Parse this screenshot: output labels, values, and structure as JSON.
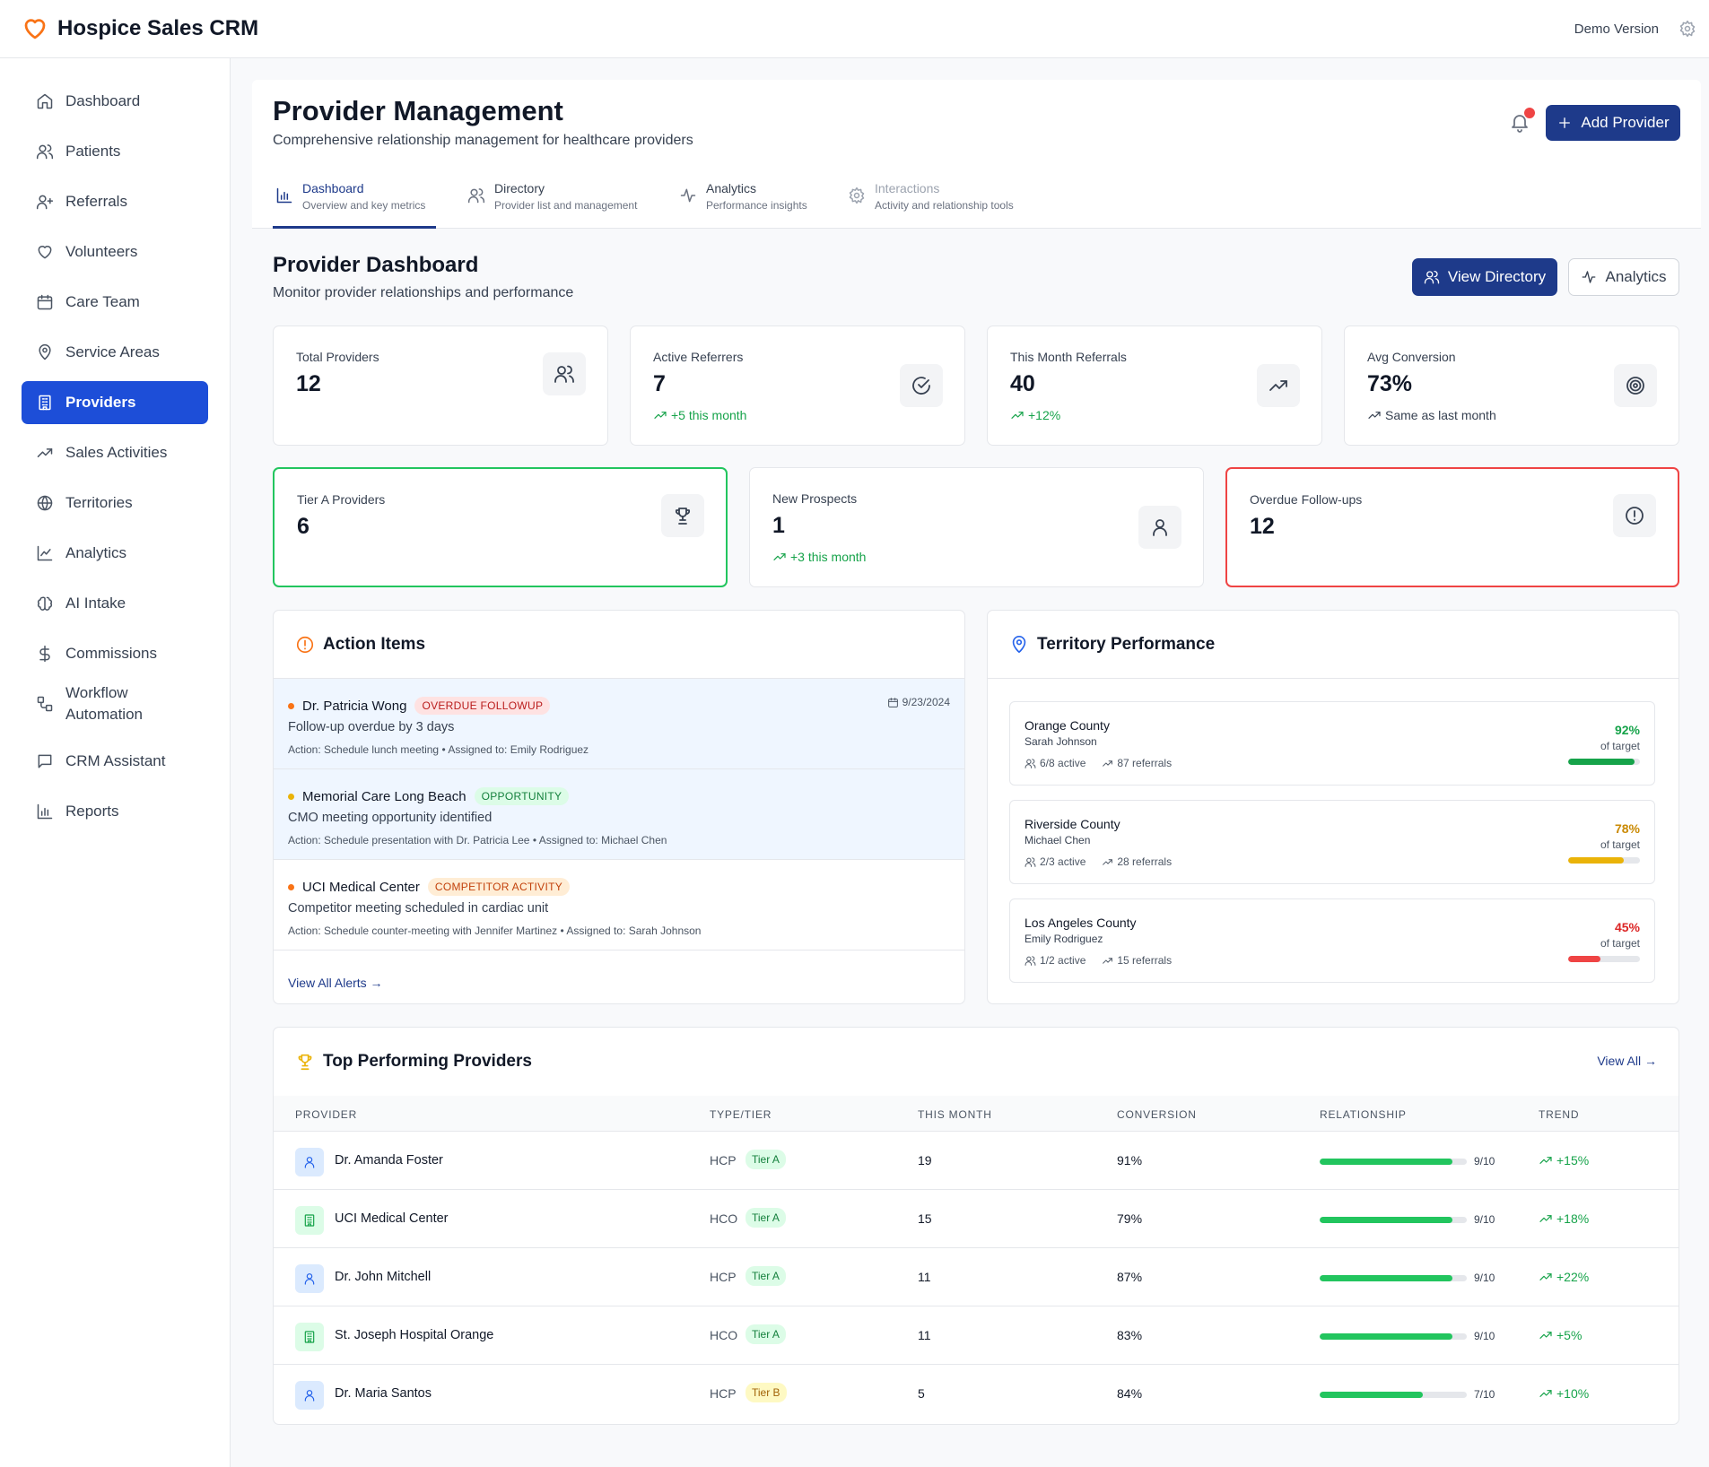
{
  "app": {
    "title": "Hospice Sales CRM",
    "demo_label": "Demo Version"
  },
  "sidebar": {
    "items": [
      {
        "label": "Dashboard",
        "icon": "home-icon"
      },
      {
        "label": "Patients",
        "icon": "users-icon"
      },
      {
        "label": "Referrals",
        "icon": "user-plus-icon"
      },
      {
        "label": "Volunteers",
        "icon": "heart-icon"
      },
      {
        "label": "Care Team",
        "icon": "calendar-icon"
      },
      {
        "label": "Service Areas",
        "icon": "map-pin-icon"
      },
      {
        "label": "Providers",
        "icon": "building-icon",
        "active": true
      },
      {
        "label": "Sales Activities",
        "icon": "trending-up-icon"
      },
      {
        "label": "Territories",
        "icon": "globe-icon"
      },
      {
        "label": "Analytics",
        "icon": "line-chart-icon"
      },
      {
        "label": "AI Intake",
        "icon": "brain-icon"
      },
      {
        "label": "Commissions",
        "icon": "dollar-icon"
      },
      {
        "label": "Workflow Automation",
        "label_line1": "Workflow",
        "label_line2": "Automation",
        "icon": "workflow-icon"
      },
      {
        "label": "CRM Assistant",
        "icon": "message-icon"
      },
      {
        "label": "Reports",
        "icon": "bar-chart-icon"
      }
    ]
  },
  "page": {
    "title": "Provider Management",
    "subtitle": "Comprehensive relationship management for healthcare providers",
    "add_button": "Add Provider"
  },
  "tabs": [
    {
      "label": "Dashboard",
      "sub": "Overview and key metrics",
      "active": true
    },
    {
      "label": "Directory",
      "sub": "Provider list and management"
    },
    {
      "label": "Analytics",
      "sub": "Performance insights"
    },
    {
      "label": "Interactions",
      "sub": "Activity and relationship tools"
    }
  ],
  "dashboard": {
    "title": "Provider Dashboard",
    "subtitle": "Monitor provider relationships and performance",
    "view_directory": "View Directory",
    "analytics": "Analytics"
  },
  "stats": [
    {
      "label": "Total Providers",
      "value": "12",
      "change": ""
    },
    {
      "label": "Active Referrers",
      "value": "7",
      "change": "+5 this month"
    },
    {
      "label": "This Month Referrals",
      "value": "40",
      "change": "+12%"
    },
    {
      "label": "Avg Conversion",
      "value": "73%",
      "change": "Same as last month"
    },
    {
      "label": "Tier A Providers",
      "value": "6",
      "change": ""
    },
    {
      "label": "New Prospects",
      "value": "1",
      "change": "+3 this month"
    },
    {
      "label": "Overdue Follow-ups",
      "value": "12",
      "change": ""
    }
  ],
  "action_items": {
    "title": "Action Items",
    "view_all": "View All Alerts →",
    "items": [
      {
        "name": "Dr. Patricia Wong",
        "badge": "OVERDUE FOLLOWUP",
        "date": "9/23/2024",
        "desc": "Follow-up overdue by 3 days",
        "action": "Action: Schedule lunch meeting • Assigned to: Emily Rodriguez",
        "dot_color": "#f97316"
      },
      {
        "name": "Memorial Care Long Beach",
        "badge": "OPPORTUNITY",
        "date": "",
        "desc": "CMO meeting opportunity identified",
        "action": "Action: Schedule presentation with Dr. Patricia Lee • Assigned to: Michael Chen",
        "dot_color": "#eab308"
      },
      {
        "name": "UCI Medical Center",
        "badge": "COMPETITOR ACTIVITY",
        "date": "",
        "desc": "Competitor meeting scheduled in cardiac unit",
        "action": "Action: Schedule counter-meeting with Jennifer Martinez • Assigned to: Sarah Johnson",
        "dot_color": "#f97316"
      }
    ]
  },
  "territory": {
    "title": "Territory Performance",
    "items": [
      {
        "name": "Orange County",
        "person": "Sarah Johnson",
        "active": "6/8 active",
        "referrals": "87 referrals",
        "pct": "92%",
        "pct_value": 0.92,
        "of_target": "of target",
        "color": "#16a34a"
      },
      {
        "name": "Riverside County",
        "person": "Michael Chen",
        "active": "2/3 active",
        "referrals": "28 referrals",
        "pct": "78%",
        "pct_value": 0.78,
        "of_target": "of target",
        "color": "#eab308"
      },
      {
        "name": "Los Angeles County",
        "person": "Emily Rodriguez",
        "active": "1/2 active",
        "referrals": "15 referrals",
        "pct": "45%",
        "pct_value": 0.45,
        "of_target": "of target",
        "color": "#ef4444"
      }
    ]
  },
  "top_providers": {
    "title": "Top Performing Providers",
    "view_all": "View All →",
    "columns": [
      "PROVIDER",
      "TYPE/TIER",
      "THIS MONTH",
      "CONVERSION",
      "RELATIONSHIP",
      "TREND"
    ],
    "rows": [
      {
        "name": "Dr. Amanda Foster",
        "type": "HCP",
        "tier": "Tier A",
        "this_month": "19",
        "conversion": "91%",
        "relationship": "9/10",
        "relationship_value": 0.9,
        "trend": "+15%"
      },
      {
        "name": "UCI Medical Center",
        "type": "HCO",
        "tier": "Tier A",
        "this_month": "15",
        "conversion": "79%",
        "relationship": "9/10",
        "relationship_value": 0.9,
        "trend": "+18%"
      },
      {
        "name": "Dr. John Mitchell",
        "type": "HCP",
        "tier": "Tier A",
        "this_month": "11",
        "conversion": "87%",
        "relationship": "9/10",
        "relationship_value": 0.9,
        "trend": "+22%"
      },
      {
        "name": "St. Joseph Hospital Orange",
        "type": "HCO",
        "tier": "Tier A",
        "this_month": "11",
        "conversion": "83%",
        "relationship": "9/10",
        "relationship_value": 0.9,
        "trend": "+5%"
      },
      {
        "name": "Dr. Maria Santos",
        "type": "HCP",
        "tier": "Tier B",
        "this_month": "5",
        "conversion": "84%",
        "relationship": "7/10",
        "relationship_value": 0.7,
        "trend": "+10%"
      }
    ]
  },
  "colors": {
    "primary": "#1e3a8a",
    "active_nav": "#1d4ed8",
    "success": "#16a34a",
    "danger": "#ef4444",
    "warning": "#eab308"
  }
}
